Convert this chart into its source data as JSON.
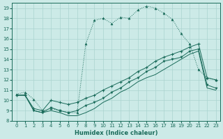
{
  "xlabel": "Humidex (Indice chaleur)",
  "bg_color": "#cceae7",
  "grid_color": "#aad4d0",
  "line_color": "#1a6b5a",
  "xlim": [
    -0.5,
    23.5
  ],
  "ylim": [
    8,
    19.5
  ],
  "xticks": [
    0,
    1,
    2,
    3,
    4,
    5,
    6,
    7,
    8,
    9,
    10,
    11,
    12,
    13,
    14,
    15,
    16,
    17,
    18,
    19,
    20,
    21,
    22,
    23
  ],
  "yticks": [
    8,
    9,
    10,
    11,
    12,
    13,
    14,
    15,
    16,
    17,
    18,
    19
  ],
  "s1_x": [
    0,
    1,
    2,
    3,
    4,
    5,
    6,
    7,
    8,
    9,
    10,
    11,
    12,
    13,
    14,
    15,
    16,
    17,
    18,
    19,
    20,
    21,
    22,
    23
  ],
  "s1_y": [
    10.6,
    10.8,
    10.1,
    9.0,
    9.2,
    9.0,
    8.8,
    8.8,
    15.5,
    17.8,
    18.0,
    17.5,
    18.1,
    18.0,
    18.8,
    19.2,
    19.0,
    18.5,
    17.9,
    16.5,
    15.5,
    13.0,
    12.2,
    12.0
  ],
  "s2_x": [
    0,
    1,
    2,
    3,
    4,
    5,
    6,
    7,
    8,
    9,
    10,
    11,
    12,
    13,
    14,
    15,
    16,
    17,
    18,
    19,
    20,
    21,
    22,
    23
  ],
  "s2_y": [
    10.5,
    10.5,
    9.2,
    9.0,
    10.0,
    9.8,
    9.6,
    9.8,
    10.2,
    10.5,
    11.0,
    11.4,
    11.8,
    12.2,
    12.8,
    13.2,
    13.8,
    14.2,
    14.5,
    14.8,
    15.2,
    15.5,
    12.2,
    12.0
  ],
  "s3_x": [
    0,
    1,
    2,
    3,
    4,
    5,
    6,
    7,
    8,
    9,
    10,
    11,
    12,
    13,
    14,
    15,
    16,
    17,
    18,
    19,
    20,
    21,
    22,
    23
  ],
  "s3_y": [
    10.5,
    10.5,
    9.0,
    8.8,
    9.3,
    9.0,
    8.8,
    9.0,
    9.5,
    9.8,
    10.2,
    10.8,
    11.2,
    11.8,
    12.2,
    12.8,
    13.2,
    13.8,
    14.0,
    14.2,
    14.8,
    15.0,
    11.5,
    11.2
  ],
  "s4_x": [
    0,
    1,
    2,
    3,
    4,
    5,
    6,
    7,
    8,
    9,
    10,
    11,
    12,
    13,
    14,
    15,
    16,
    17,
    18,
    19,
    20,
    21,
    22,
    23
  ],
  "s4_y": [
    10.5,
    10.5,
    9.0,
    8.8,
    9.0,
    8.8,
    8.5,
    8.5,
    8.8,
    9.2,
    9.8,
    10.2,
    10.8,
    11.2,
    11.8,
    12.2,
    12.5,
    13.0,
    13.5,
    14.0,
    14.5,
    14.8,
    11.2,
    11.0
  ]
}
